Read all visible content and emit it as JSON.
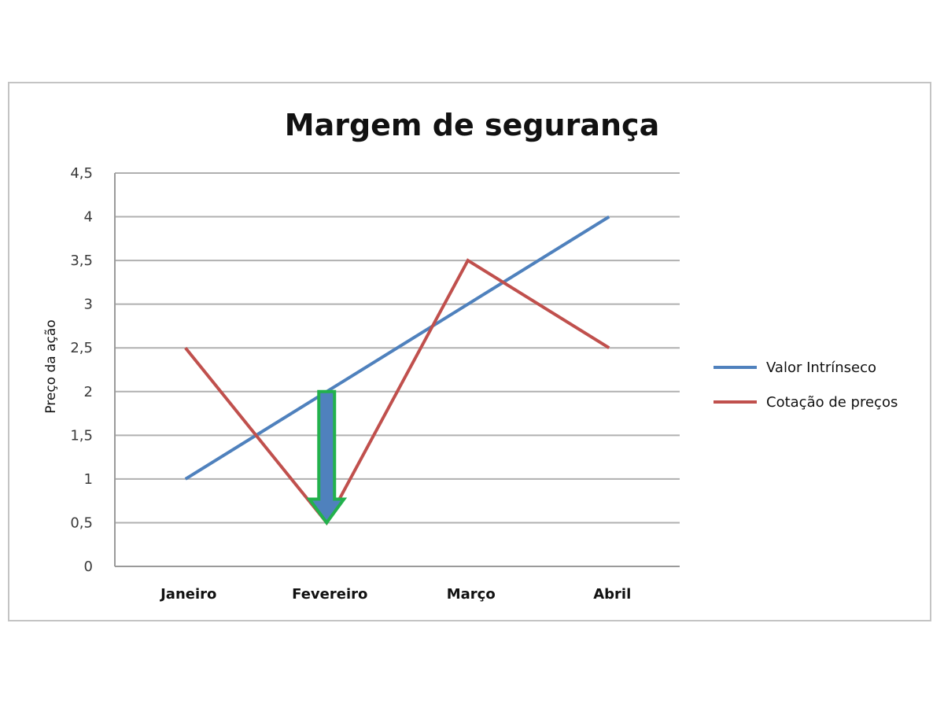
{
  "chart_data": {
    "type": "line",
    "title": "Margem de segurança",
    "xlabel": "",
    "ylabel": "Preço da ação",
    "categories": [
      "Janeiro",
      "Fevereiro",
      "Março",
      "Abril"
    ],
    "ylim": [
      0,
      4.5
    ],
    "yticks": [
      "0",
      "0,5",
      "1",
      "1,5",
      "2",
      "2,5",
      "3",
      "3,5",
      "4",
      "4,5"
    ],
    "grid": true,
    "legend_position": "right",
    "series": [
      {
        "name": "Valor Intrínseco",
        "values": [
          1,
          2,
          3,
          4
        ],
        "color": "#4f81bd"
      },
      {
        "name": "Cotação de preços",
        "values": [
          2.5,
          0.5,
          3.5,
          2.5
        ],
        "color": "#c0504d"
      }
    ],
    "annotation": {
      "type": "arrow-down",
      "category": "Fevereiro",
      "from": 2,
      "to": 0.5,
      "fill_color": "#4f81bd",
      "outline_color": "#22b14c"
    }
  }
}
